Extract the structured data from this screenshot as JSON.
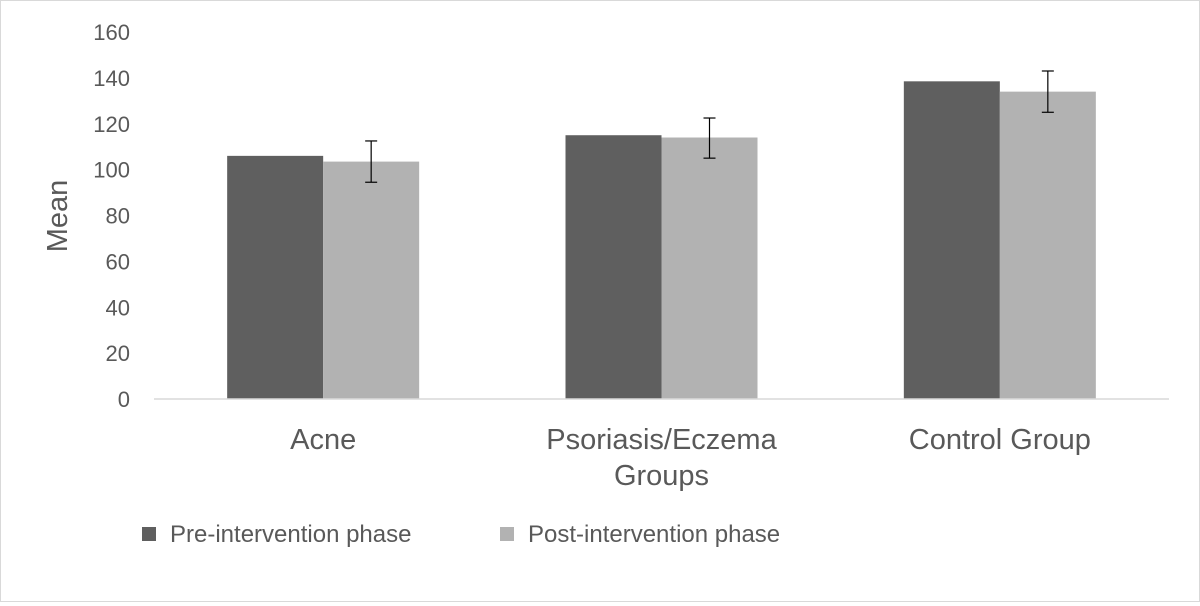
{
  "chart_data": {
    "type": "bar",
    "ylabel": "Mean",
    "ylim": [
      0,
      160
    ],
    "yticks": [
      0,
      20,
      40,
      60,
      80,
      100,
      120,
      140,
      160
    ],
    "categories": [
      "Acne",
      "Psoriasis/Eczema Groups",
      "Control Group"
    ],
    "category_lines": [
      [
        "Acne"
      ],
      [
        "Psoriasis/Eczema",
        "Groups"
      ],
      [
        "Control Group"
      ]
    ],
    "legend_position": "bottom",
    "grid": false,
    "series": [
      {
        "name": "Pre-intervention phase",
        "color": "#5f5f5f",
        "values": [
          106,
          115,
          138.5
        ]
      },
      {
        "name": "Post-intervention phase",
        "color": "#b2b2b2",
        "values": [
          103.5,
          114,
          134
        ],
        "error_low": [
          94.5,
          105,
          125
        ],
        "error_high": [
          112.5,
          122.5,
          143
        ]
      }
    ]
  }
}
